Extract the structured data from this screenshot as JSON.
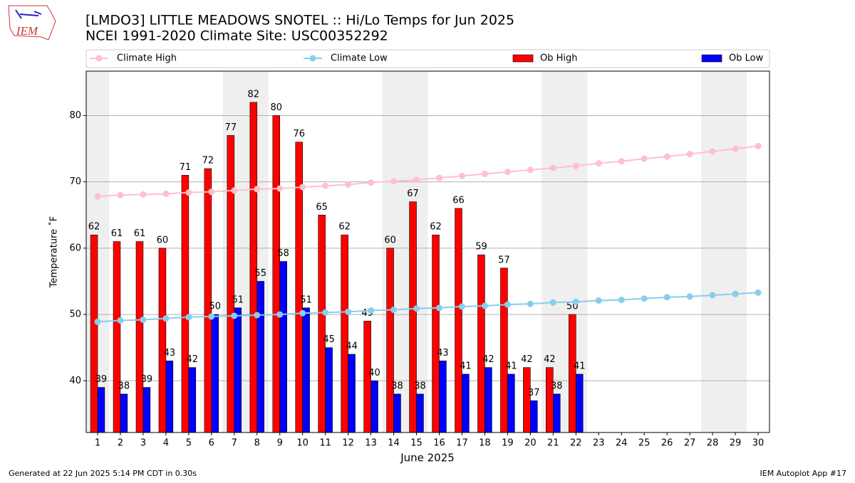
{
  "logo_text": "IEM",
  "footer_left": "Generated at 22 Jun 2025 5:14 PM CDT in 0.30s",
  "footer_right": "IEM Autoplot App #17",
  "chart_data": {
    "type": "bar",
    "title": "[LMDO3] LITTLE MEADOWS SNOTEL :: Hi/Lo Temps for Jun 2025",
    "subtitle": "NCEI 1991-2020 Climate Site: USC00352292",
    "x_label": "June 2025",
    "y_label": "Temperature ˚F",
    "x": [
      1,
      2,
      3,
      4,
      5,
      6,
      7,
      8,
      9,
      10,
      11,
      12,
      13,
      14,
      15,
      16,
      17,
      18,
      19,
      20,
      21,
      22,
      23,
      24,
      25,
      26,
      27,
      28,
      29,
      30
    ],
    "xlim": [
      0.5,
      30.5
    ],
    "ylim": [
      32.2,
      86.7
    ],
    "yticks": [
      40,
      50,
      60,
      70,
      80
    ],
    "grid": true,
    "shaded_days": [
      1,
      7,
      8,
      14,
      15,
      21,
      22,
      28,
      29
    ],
    "series": [
      {
        "name": "Climate High",
        "kind": "line",
        "color": "#ffc0cb",
        "values": [
          67.8,
          68.0,
          68.1,
          68.2,
          68.4,
          68.5,
          68.7,
          68.9,
          69.0,
          69.2,
          69.4,
          69.6,
          69.9,
          70.1,
          70.3,
          70.6,
          70.9,
          71.2,
          71.5,
          71.8,
          72.1,
          72.4,
          72.8,
          73.1,
          73.5,
          73.8,
          74.2,
          74.6,
          75.0,
          75.4
        ]
      },
      {
        "name": "Climate Low",
        "kind": "line",
        "color": "#87ceeb",
        "values": [
          48.9,
          49.1,
          49.2,
          49.4,
          49.6,
          49.7,
          49.8,
          49.9,
          50.0,
          50.2,
          50.3,
          50.4,
          50.6,
          50.7,
          50.9,
          51.0,
          51.2,
          51.3,
          51.5,
          51.6,
          51.8,
          51.9,
          52.1,
          52.2,
          52.4,
          52.6,
          52.7,
          52.9,
          53.1,
          53.3
        ]
      },
      {
        "name": "Ob High",
        "kind": "bar",
        "color": "#ff0000",
        "values": [
          62,
          61,
          61,
          60,
          71,
          72,
          77,
          82,
          80,
          76,
          65,
          62,
          49,
          60,
          67,
          62,
          66,
          59,
          57,
          42,
          42,
          50,
          null,
          null,
          null,
          null,
          null,
          null,
          null,
          null
        ]
      },
      {
        "name": "Ob Low",
        "kind": "bar",
        "color": "#0000ff",
        "values": [
          39,
          38,
          39,
          43,
          42,
          50,
          51,
          55,
          58,
          51,
          45,
          44,
          40,
          38,
          38,
          43,
          41,
          42,
          41,
          37,
          38,
          41,
          null,
          null,
          null,
          null,
          null,
          null,
          null,
          null
        ]
      }
    ]
  }
}
